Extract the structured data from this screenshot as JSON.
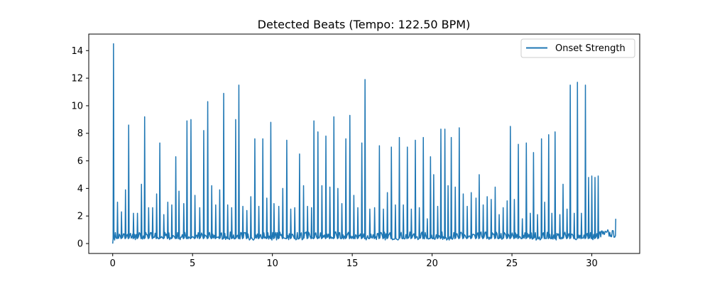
{
  "chart_data": {
    "type": "line",
    "title": "Detected Beats (Tempo: 122.50 BPM)",
    "xlabel": "",
    "ylabel": "",
    "xlim": [
      -1.5,
      33.0
    ],
    "ylim": [
      -0.72,
      15.2
    ],
    "x_ticks": [
      0,
      5,
      10,
      15,
      20,
      25,
      30
    ],
    "y_ticks": [
      0,
      2,
      4,
      6,
      8,
      10,
      12,
      14
    ],
    "grid": false,
    "legend_position": "upper right",
    "series": [
      {
        "name": "Onset Strength",
        "color": "#1f77b4",
        "peaks": [
          [
            0.05,
            14.5
          ],
          [
            0.3,
            3.0
          ],
          [
            0.55,
            2.3
          ],
          [
            0.8,
            3.9
          ],
          [
            1.0,
            8.6
          ],
          [
            1.3,
            2.2
          ],
          [
            1.55,
            2.2
          ],
          [
            1.8,
            4.3
          ],
          [
            2.0,
            9.2
          ],
          [
            2.25,
            2.6
          ],
          [
            2.5,
            2.6
          ],
          [
            2.75,
            3.6
          ],
          [
            2.95,
            7.3
          ],
          [
            3.2,
            2.1
          ],
          [
            3.45,
            3.0
          ],
          [
            3.7,
            2.8
          ],
          [
            3.95,
            6.3
          ],
          [
            4.15,
            3.8
          ],
          [
            4.45,
            2.9
          ],
          [
            4.65,
            8.9
          ],
          [
            4.9,
            9.0
          ],
          [
            5.15,
            3.5
          ],
          [
            5.45,
            2.6
          ],
          [
            5.7,
            8.2
          ],
          [
            5.95,
            10.3
          ],
          [
            6.2,
            4.2
          ],
          [
            6.45,
            2.8
          ],
          [
            6.7,
            3.9
          ],
          [
            6.95,
            10.9
          ],
          [
            7.2,
            2.8
          ],
          [
            7.45,
            2.6
          ],
          [
            7.7,
            9.0
          ],
          [
            7.9,
            11.5
          ],
          [
            8.15,
            2.7
          ],
          [
            8.4,
            2.4
          ],
          [
            8.65,
            3.4
          ],
          [
            8.9,
            7.6
          ],
          [
            9.15,
            2.7
          ],
          [
            9.4,
            7.6
          ],
          [
            9.65,
            3.3
          ],
          [
            9.9,
            8.8
          ],
          [
            10.1,
            2.9
          ],
          [
            10.4,
            2.7
          ],
          [
            10.65,
            4.0
          ],
          [
            10.9,
            7.5
          ],
          [
            11.15,
            2.5
          ],
          [
            11.4,
            2.6
          ],
          [
            11.7,
            6.5
          ],
          [
            11.95,
            4.2
          ],
          [
            12.2,
            2.7
          ],
          [
            12.45,
            2.6
          ],
          [
            12.6,
            8.9
          ],
          [
            12.85,
            8.1
          ],
          [
            13.1,
            4.2
          ],
          [
            13.35,
            7.8
          ],
          [
            13.6,
            4.1
          ],
          [
            13.85,
            9.2
          ],
          [
            14.1,
            4.0
          ],
          [
            14.35,
            2.9
          ],
          [
            14.6,
            7.6
          ],
          [
            14.85,
            9.3
          ],
          [
            15.1,
            3.5
          ],
          [
            15.35,
            2.6
          ],
          [
            15.6,
            7.3
          ],
          [
            15.8,
            11.9
          ],
          [
            16.1,
            2.5
          ],
          [
            16.4,
            2.6
          ],
          [
            16.7,
            7.1
          ],
          [
            16.95,
            2.5
          ],
          [
            17.2,
            3.7
          ],
          [
            17.45,
            7.0
          ],
          [
            17.7,
            2.8
          ],
          [
            17.95,
            7.7
          ],
          [
            18.2,
            2.8
          ],
          [
            18.45,
            7.0
          ],
          [
            18.7,
            2.5
          ],
          [
            18.95,
            7.5
          ],
          [
            19.2,
            2.6
          ],
          [
            19.45,
            7.7
          ],
          [
            19.7,
            1.8
          ],
          [
            19.9,
            6.3
          ],
          [
            20.1,
            5.0
          ],
          [
            20.35,
            2.7
          ],
          [
            20.55,
            8.3
          ],
          [
            20.8,
            8.3
          ],
          [
            21.0,
            4.2
          ],
          [
            21.2,
            7.7
          ],
          [
            21.45,
            4.1
          ],
          [
            21.7,
            8.4
          ],
          [
            21.95,
            3.6
          ],
          [
            22.2,
            2.7
          ],
          [
            22.45,
            3.7
          ],
          [
            22.75,
            3.3
          ],
          [
            22.95,
            5.0
          ],
          [
            23.2,
            2.8
          ],
          [
            23.45,
            3.4
          ],
          [
            23.7,
            3.2
          ],
          [
            23.95,
            4.1
          ],
          [
            24.2,
            2.1
          ],
          [
            24.45,
            2.6
          ],
          [
            24.7,
            3.1
          ],
          [
            24.9,
            8.5
          ],
          [
            25.15,
            3.2
          ],
          [
            25.4,
            7.2
          ],
          [
            25.65,
            1.8
          ],
          [
            25.9,
            7.3
          ],
          [
            26.15,
            2.2
          ],
          [
            26.35,
            6.6
          ],
          [
            26.6,
            2.1
          ],
          [
            26.85,
            7.6
          ],
          [
            27.05,
            3.0
          ],
          [
            27.3,
            7.9
          ],
          [
            27.5,
            2.2
          ],
          [
            27.7,
            8.1
          ],
          [
            28.0,
            2.1
          ],
          [
            28.2,
            4.3
          ],
          [
            28.45,
            2.5
          ],
          [
            28.65,
            11.5
          ],
          [
            28.9,
            2.2
          ],
          [
            29.1,
            11.7
          ],
          [
            29.35,
            2.2
          ],
          [
            29.6,
            11.5
          ],
          [
            29.8,
            4.8
          ],
          [
            30.0,
            4.9
          ],
          [
            30.2,
            4.8
          ],
          [
            30.4,
            4.9
          ]
        ],
        "tail": [
          [
            30.6,
            0.9
          ],
          [
            30.8,
            0.7
          ],
          [
            31.0,
            1.0
          ],
          [
            31.2,
            0.6
          ],
          [
            31.35,
            0.9
          ],
          [
            31.5,
            1.8
          ]
        ]
      }
    ]
  }
}
